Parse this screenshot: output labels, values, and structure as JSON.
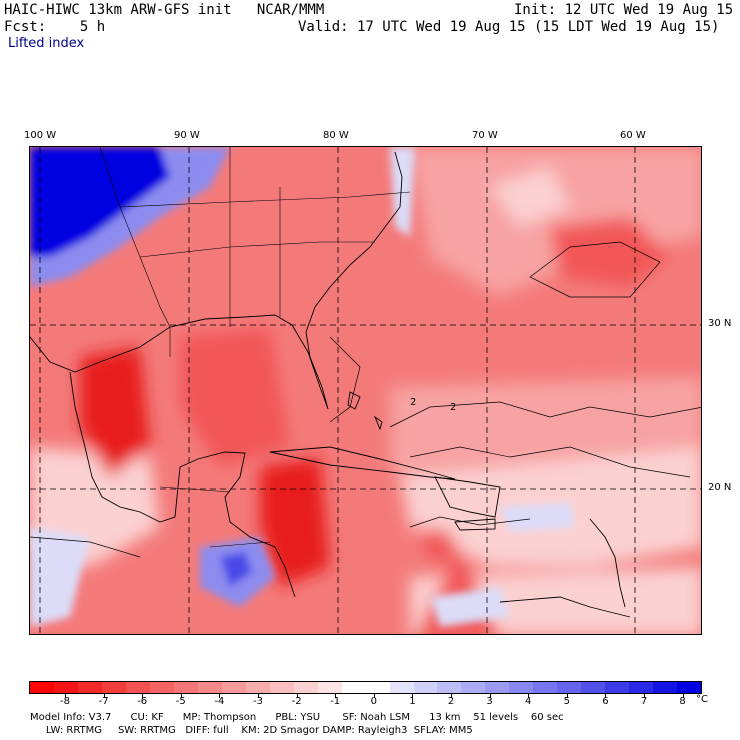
{
  "header": {
    "title": "HAIC-HIWC 13km ARW-GFS init   NCAR/MMM",
    "init": "Init: 12 UTC Wed 19 Aug 15",
    "fcst": "Fcst:    5 h",
    "valid": "Valid: 17 UTC Wed 19 Aug 15 (15 LDT Wed 19 Aug 15)",
    "field": "Lifted index"
  },
  "map": {
    "longitude_labels": [
      "100 W",
      "90 W",
      "80 W",
      "70 W",
      "60 W"
    ],
    "latitude_labels": [
      "30 N",
      "20 N"
    ],
    "contour_labels": [
      "2",
      "2"
    ],
    "colors": {
      "strong_unstable": "#e81c1c",
      "unstable": "#f25656",
      "moderate": "#f47a7a",
      "weak": "#f8a3a3",
      "near_zero": "#fbd0d0",
      "stable_light": "#dcdcf8",
      "stable": "#8c8cf0",
      "very_stable": "#0000e0"
    }
  },
  "colorbar": {
    "tick_labels": [
      "-8",
      "-7",
      "-6",
      "-5",
      "-4",
      "-3",
      "-2",
      "-1",
      "0",
      "1",
      "2",
      "3",
      "4",
      "5",
      "6",
      "7",
      "8"
    ],
    "unit": "°C",
    "colors": [
      "#ff0000",
      "#f41414",
      "#f32a2a",
      "#f23d3d",
      "#f25252",
      "#f36464",
      "#f47676",
      "#f58888",
      "#f69a9a",
      "#f8acac",
      "#f9bebe",
      "#fbd0d0",
      "#fde3e3",
      "#ffffff",
      "#ffffff",
      "#e3e3fb",
      "#d0d0f8",
      "#bebef6",
      "#acacf4",
      "#9a9af2",
      "#8888f0",
      "#7676ee",
      "#6464ec",
      "#5252ea",
      "#3d3de8",
      "#2a2ae6",
      "#1414e4",
      "#0000e0"
    ]
  },
  "footer": {
    "line1": "Model Info: V3.7      CU: KF      MP: Thompson      PBL: YSU       SF: Noah LSM      13 km    51 levels    60 sec",
    "line2": "     LW: RRTMG     SW: RRTMG   DIFF: full    KM: 2D Smagor DAMP: Rayleigh3  SFLAY: MM5"
  }
}
